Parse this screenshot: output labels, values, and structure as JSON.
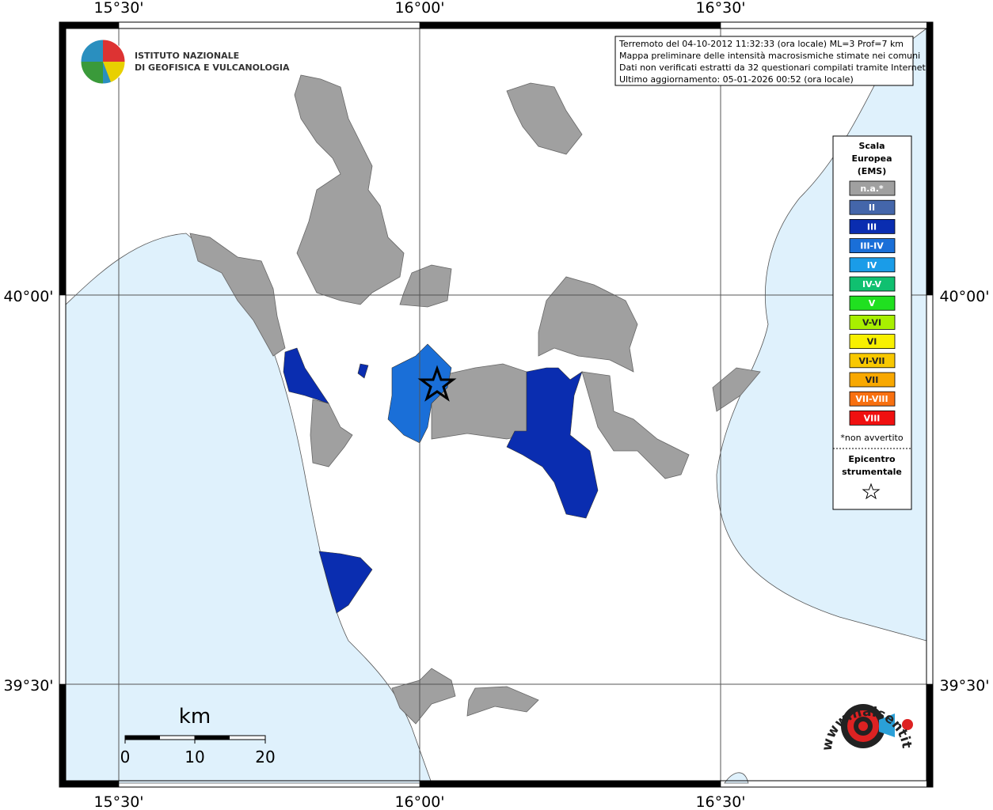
{
  "header": {
    "institute": [
      "ISTITUTO NAZIONALE",
      "DI GEOFISICA E VULCANOLOGIA"
    ]
  },
  "info": [
    "Terremoto del 04-10-2012 11:32:33 (ora locale) ML=3 Prof=7 km",
    "Mappa preliminare delle intensità macrosismiche stimate nei comuni",
    "Dati non verificati estratti da 32 questionari compilati tramite Internet.",
    "Ultimo aggiornamento: 05-01-2026 00:52 (ora locale)"
  ],
  "axes": {
    "longitude": [
      "15°30'",
      "16°00'",
      "16°30'"
    ],
    "latitude": [
      "40°00'",
      "39°30'"
    ]
  },
  "legend": {
    "title": [
      "Scala",
      "Europea",
      "(EMS)"
    ],
    "items": [
      {
        "label": "n.a.*",
        "color": "#a0a0a0"
      },
      {
        "label": "II",
        "color": "#4466aa"
      },
      {
        "label": "III",
        "color": "#0a2db0"
      },
      {
        "label": "III-IV",
        "color": "#1a6fd8"
      },
      {
        "label": "IV",
        "color": "#1a9ce8"
      },
      {
        "label": "IV-V",
        "color": "#10c070"
      },
      {
        "label": "V",
        "color": "#20e020"
      },
      {
        "label": "V-VI",
        "color": "#a8f000"
      },
      {
        "label": "VI",
        "color": "#f8f000"
      },
      {
        "label": "VI-VII",
        "color": "#f8c800"
      },
      {
        "label": "VII",
        "color": "#f8a800"
      },
      {
        "label": "VII-VIII",
        "color": "#f87010"
      },
      {
        "label": "VIII",
        "color": "#f01010"
      }
    ],
    "note": "*non avvertito",
    "epicenter": [
      "Epicentro",
      "strumentale"
    ]
  },
  "scale_bar": {
    "unit": "km",
    "labels": [
      "0",
      "10",
      "20"
    ]
  },
  "site_logo": "www.haisentitoilterremoto.it"
}
